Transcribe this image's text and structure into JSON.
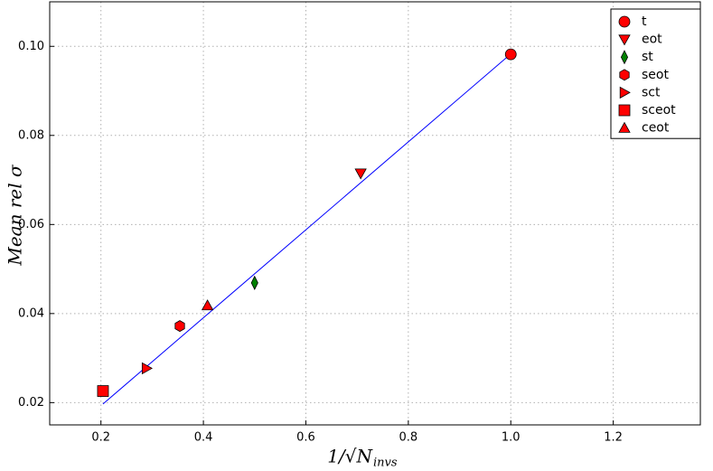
{
  "chart_data": {
    "type": "scatter",
    "ylabel": "Mean rel σ",
    "xlabel_main": "1/√N",
    "xlabel_sub": "invs",
    "xlim": [
      0.1,
      1.37
    ],
    "ylim": [
      0.015,
      0.11
    ],
    "xticks": [
      0.2,
      0.4,
      0.6,
      0.8,
      {
        "value": 1.0,
        "label": "1.0"
      },
      1.2
    ],
    "yticks": [
      0.02,
      0.04,
      0.06,
      0.08,
      {
        "value": 0.1,
        "label": "0.10"
      }
    ],
    "grid": true,
    "legend": "upper right",
    "series": [
      {
        "name": "t",
        "marker": "circle",
        "color": "#ff0000",
        "x": [
          1.0
        ],
        "y": [
          0.0982
        ]
      },
      {
        "name": "eot",
        "marker": "triangle-down",
        "color": "#ff0000",
        "x": [
          0.707
        ],
        "y": [
          0.0715
        ]
      },
      {
        "name": "st",
        "marker": "thin-diamond",
        "color": "#008000",
        "x": [
          0.5
        ],
        "y": [
          0.0469
        ]
      },
      {
        "name": "seot",
        "marker": "hexagon",
        "color": "#ff0000",
        "x": [
          0.354
        ],
        "y": [
          0.0372
        ]
      },
      {
        "name": "sct",
        "marker": "triangle-right",
        "color": "#ff0000",
        "x": [
          0.289
        ],
        "y": [
          0.0277
        ]
      },
      {
        "name": "sceot",
        "marker": "square",
        "color": "#ff0000",
        "x": [
          0.204
        ],
        "y": [
          0.0226
        ]
      },
      {
        "name": "ceot",
        "marker": "triangle-up",
        "color": "#ff0000",
        "x": [
          0.408
        ],
        "y": [
          0.0418
        ]
      }
    ],
    "line": {
      "color": "#0000ff",
      "x": [
        0.204,
        1.0
      ],
      "y": [
        0.0197,
        0.0983
      ]
    }
  }
}
